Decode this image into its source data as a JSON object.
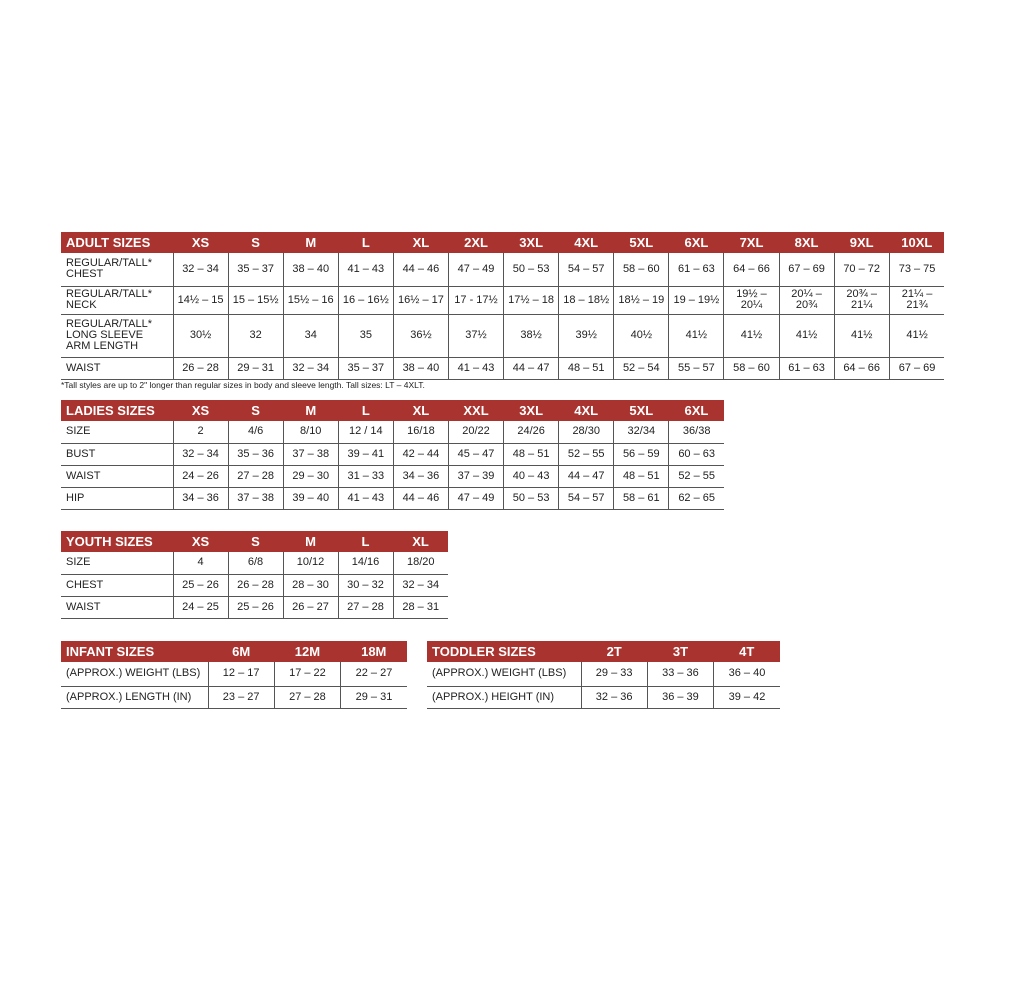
{
  "colors": {
    "header": "#a8332f"
  },
  "adult": {
    "title": "ADULT SIZES",
    "sizes": [
      "XS",
      "S",
      "M",
      "L",
      "XL",
      "2XL",
      "3XL",
      "4XL",
      "5XL",
      "6XL",
      "7XL",
      "8XL",
      "9XL",
      "10XL"
    ],
    "rows": [
      {
        "label": "REGULAR/TALL*\nCHEST",
        "values": [
          "32 – 34",
          "35 – 37",
          "38 – 40",
          "41 – 43",
          "44 – 46",
          "47 – 49",
          "50 – 53",
          "54 – 57",
          "58 – 60",
          "61 – 63",
          "64 – 66",
          "67 – 69",
          "70 – 72",
          "73 – 75"
        ]
      },
      {
        "label": "REGULAR/TALL*\nNECK",
        "values": [
          "14½ – 15",
          "15 – 15½",
          "15½ – 16",
          "16 – 16½",
          "16½ – 17",
          "17 - 17½",
          "17½ – 18",
          "18 – 18½",
          "18½ – 19",
          "19 – 19½",
          "19½ –\n20¼",
          "20¼ –\n20¾",
          "20¾ –\n21¼",
          "21¼ –\n21¾"
        ]
      },
      {
        "label": "REGULAR/TALL*\nLONG SLEEVE\nARM LENGTH",
        "values": [
          "30½",
          "32",
          "34",
          "35",
          "36½",
          "37½",
          "38½",
          "39½",
          "40½",
          "41½",
          "41½",
          "41½",
          "41½",
          "41½"
        ]
      },
      {
        "label": "WAIST",
        "values": [
          "26 – 28",
          "29 – 31",
          "32 – 34",
          "35 – 37",
          "38 – 40",
          "41 – 43",
          "44 – 47",
          "48 – 51",
          "52 – 54",
          "55 – 57",
          "58 – 60",
          "61 – 63",
          "64 – 66",
          "67 – 69"
        ]
      }
    ],
    "footnote": "*Tall styles are up to 2\" longer than regular sizes in body and sleeve length. Tall sizes: LT – 4XLT."
  },
  "ladies": {
    "title": "LADIES SIZES",
    "sizes": [
      "XS",
      "S",
      "M",
      "L",
      "XL",
      "XXL",
      "3XL",
      "4XL",
      "5XL",
      "6XL"
    ],
    "rows": [
      {
        "label": "SIZE",
        "values": [
          "2",
          "4/6",
          "8/10",
          "12 / 14",
          "16/18",
          "20/22",
          "24/26",
          "28/30",
          "32/34",
          "36/38"
        ]
      },
      {
        "label": "BUST",
        "values": [
          "32 – 34",
          "35 – 36",
          "37 – 38",
          "39 – 41",
          "42 – 44",
          "45 – 47",
          "48 – 51",
          "52 – 55",
          "56 – 59",
          "60 – 63"
        ]
      },
      {
        "label": "WAIST",
        "values": [
          "24 – 26",
          "27 – 28",
          "29 – 30",
          "31 – 33",
          "34 – 36",
          "37 – 39",
          "40 – 43",
          "44 – 47",
          "48 – 51",
          "52 – 55"
        ]
      },
      {
        "label": "HIP",
        "values": [
          "34 – 36",
          "37 – 38",
          "39 – 40",
          "41 – 43",
          "44 – 46",
          "47 – 49",
          "50 – 53",
          "54 – 57",
          "58 – 61",
          "62 – 65"
        ]
      }
    ]
  },
  "youth": {
    "title": "YOUTH SIZES",
    "sizes": [
      "XS",
      "S",
      "M",
      "L",
      "XL"
    ],
    "rows": [
      {
        "label": "SIZE",
        "values": [
          "4",
          "6/8",
          "10/12",
          "14/16",
          "18/20"
        ]
      },
      {
        "label": "CHEST",
        "values": [
          "25 – 26",
          "26 – 28",
          "28 – 30",
          "30 – 32",
          "32 – 34"
        ]
      },
      {
        "label": "WAIST",
        "values": [
          "24 – 25",
          "25 – 26",
          "26 – 27",
          "27 – 28",
          "28 – 31"
        ]
      }
    ]
  },
  "infant": {
    "title": "INFANT SIZES",
    "sizes": [
      "6M",
      "12M",
      "18M"
    ],
    "rows": [
      {
        "label": "(APPROX.) WEIGHT (LBS)",
        "values": [
          "12 – 17",
          "17 – 22",
          "22 – 27"
        ]
      },
      {
        "label": "(APPROX.) LENGTH (IN)",
        "values": [
          "23 – 27",
          "27 – 28",
          "29 – 31"
        ]
      }
    ]
  },
  "toddler": {
    "title": "TODDLER SIZES",
    "sizes": [
      "2T",
      "3T",
      "4T"
    ],
    "rows": [
      {
        "label": "(APPROX.) WEIGHT (LBS)",
        "values": [
          "29 – 33",
          "33 – 36",
          "36 – 40"
        ]
      },
      {
        "label": "(APPROX.) HEIGHT (IN)",
        "values": [
          "32 – 36",
          "36 – 39",
          "39 – 42"
        ]
      }
    ]
  }
}
